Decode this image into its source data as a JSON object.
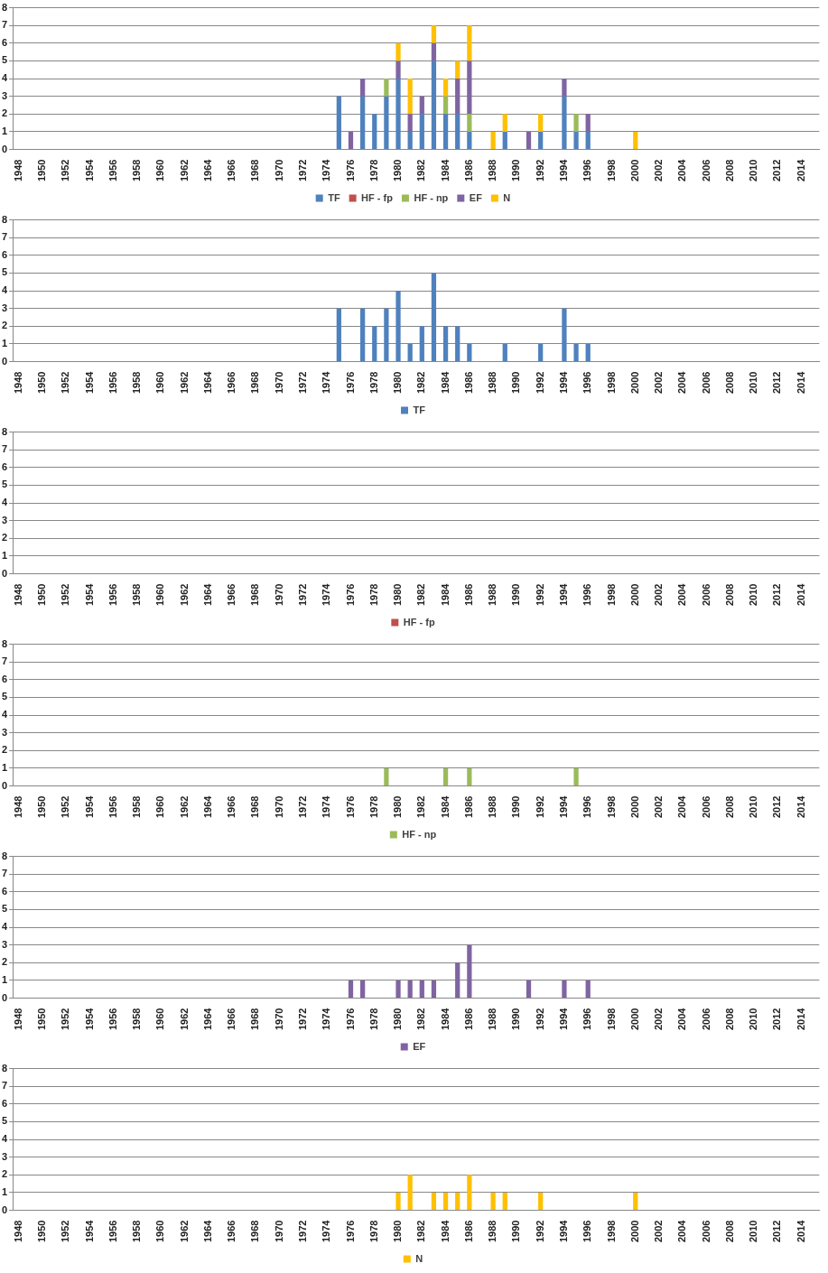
{
  "chart_data": [
    {
      "type": "bar",
      "stacked": true,
      "categories": [
        "1948",
        null,
        "1950",
        null,
        "1952",
        null,
        "1954",
        null,
        "1956",
        null,
        "1958",
        null,
        "1960",
        null,
        "1962",
        null,
        "1964",
        null,
        "1966",
        null,
        "1968",
        null,
        "1970",
        null,
        "1972",
        null,
        "1974",
        null,
        "1976",
        null,
        "1978",
        null,
        "1980",
        null,
        "1982",
        null,
        "1984",
        null,
        "1986",
        null,
        "1988",
        null,
        "1990",
        null,
        "1992",
        null,
        "1994",
        null,
        "1996",
        null,
        "1998",
        null,
        "2000",
        null,
        "2002",
        null,
        "2004",
        null,
        "2006",
        null,
        "2008",
        null,
        "2010",
        null,
        "2012",
        null,
        "2014",
        null
      ],
      "ylim": [
        0,
        8
      ],
      "yticks": [
        0,
        1,
        2,
        3,
        4,
        5,
        6,
        7,
        8
      ],
      "grid": "y",
      "legend": "bottom",
      "series": [
        {
          "name": "TF",
          "color": "#4f81bd",
          "values": [
            0,
            0,
            0,
            0,
            0,
            0,
            0,
            0,
            0,
            0,
            0,
            0,
            0,
            0,
            0,
            0,
            0,
            0,
            0,
            0,
            0,
            0,
            0,
            0,
            0,
            0,
            0,
            3,
            0,
            3,
            2,
            3,
            4,
            1,
            2,
            5,
            2,
            2,
            1,
            0,
            0,
            1,
            0,
            0,
            1,
            0,
            3,
            1,
            1,
            0,
            0,
            0,
            0,
            0,
            0,
            0,
            0,
            0,
            0,
            0,
            0,
            0,
            0,
            0,
            0,
            0,
            0,
            0
          ]
        },
        {
          "name": "HF - fp",
          "color": "#c0504d",
          "values": [
            0,
            0,
            0,
            0,
            0,
            0,
            0,
            0,
            0,
            0,
            0,
            0,
            0,
            0,
            0,
            0,
            0,
            0,
            0,
            0,
            0,
            0,
            0,
            0,
            0,
            0,
            0,
            0,
            0,
            0,
            0,
            0,
            0,
            0,
            0,
            0,
            0,
            0,
            0,
            0,
            0,
            0,
            0,
            0,
            0,
            0,
            0,
            0,
            0,
            0,
            0,
            0,
            0,
            0,
            0,
            0,
            0,
            0,
            0,
            0,
            0,
            0,
            0,
            0,
            0,
            0,
            0,
            0
          ]
        },
        {
          "name": "HF - np",
          "color": "#9bbb59",
          "values": [
            0,
            0,
            0,
            0,
            0,
            0,
            0,
            0,
            0,
            0,
            0,
            0,
            0,
            0,
            0,
            0,
            0,
            0,
            0,
            0,
            0,
            0,
            0,
            0,
            0,
            0,
            0,
            0,
            0,
            0,
            0,
            1,
            0,
            0,
            0,
            0,
            1,
            0,
            1,
            0,
            0,
            0,
            0,
            0,
            0,
            0,
            0,
            1,
            0,
            0,
            0,
            0,
            0,
            0,
            0,
            0,
            0,
            0,
            0,
            0,
            0,
            0,
            0,
            0,
            0,
            0,
            0,
            0
          ]
        },
        {
          "name": "EF",
          "color": "#8064a2",
          "values": [
            0,
            0,
            0,
            0,
            0,
            0,
            0,
            0,
            0,
            0,
            0,
            0,
            0,
            0,
            0,
            0,
            0,
            0,
            0,
            0,
            0,
            0,
            0,
            0,
            0,
            0,
            0,
            0,
            1,
            1,
            0,
            0,
            1,
            1,
            1,
            1,
            0,
            2,
            3,
            0,
            0,
            0,
            0,
            1,
            0,
            0,
            1,
            0,
            1,
            0,
            0,
            0,
            0,
            0,
            0,
            0,
            0,
            0,
            0,
            0,
            0,
            0,
            0,
            0,
            0,
            0,
            0,
            0
          ]
        },
        {
          "name": "N",
          "color": "#ffc000",
          "values": [
            0,
            0,
            0,
            0,
            0,
            0,
            0,
            0,
            0,
            0,
            0,
            0,
            0,
            0,
            0,
            0,
            0,
            0,
            0,
            0,
            0,
            0,
            0,
            0,
            0,
            0,
            0,
            0,
            0,
            0,
            0,
            0,
            1,
            2,
            0,
            1,
            1,
            1,
            2,
            0,
            1,
            1,
            0,
            0,
            1,
            0,
            0,
            0,
            0,
            0,
            0,
            0,
            1,
            0,
            0,
            0,
            0,
            0,
            0,
            0,
            0,
            0,
            0,
            0,
            0,
            0,
            0,
            0
          ]
        }
      ]
    },
    {
      "type": "bar",
      "categories": [
        "1948",
        null,
        "1950",
        null,
        "1952",
        null,
        "1954",
        null,
        "1956",
        null,
        "1958",
        null,
        "1960",
        null,
        "1962",
        null,
        "1964",
        null,
        "1966",
        null,
        "1968",
        null,
        "1970",
        null,
        "1972",
        null,
        "1974",
        null,
        "1976",
        null,
        "1978",
        null,
        "1980",
        null,
        "1982",
        null,
        "1984",
        null,
        "1986",
        null,
        "1988",
        null,
        "1990",
        null,
        "1992",
        null,
        "1994",
        null,
        "1996",
        null,
        "1998",
        null,
        "2000",
        null,
        "2002",
        null,
        "2004",
        null,
        "2006",
        null,
        "2008",
        null,
        "2010",
        null,
        "2012",
        null,
        "2014",
        null
      ],
      "ylim": [
        0,
        8
      ],
      "yticks": [
        0,
        1,
        2,
        3,
        4,
        5,
        6,
        7,
        8
      ],
      "grid": "y",
      "legend": "bottom",
      "series": [
        {
          "name": "TF",
          "color": "#4f81bd",
          "values": [
            0,
            0,
            0,
            0,
            0,
            0,
            0,
            0,
            0,
            0,
            0,
            0,
            0,
            0,
            0,
            0,
            0,
            0,
            0,
            0,
            0,
            0,
            0,
            0,
            0,
            0,
            0,
            3,
            0,
            3,
            2,
            3,
            4,
            1,
            2,
            5,
            2,
            2,
            1,
            0,
            0,
            1,
            0,
            0,
            1,
            0,
            3,
            1,
            1,
            0,
            0,
            0,
            0,
            0,
            0,
            0,
            0,
            0,
            0,
            0,
            0,
            0,
            0,
            0,
            0,
            0,
            0,
            0
          ]
        }
      ]
    },
    {
      "type": "bar",
      "categories": [
        "1948",
        null,
        "1950",
        null,
        "1952",
        null,
        "1954",
        null,
        "1956",
        null,
        "1958",
        null,
        "1960",
        null,
        "1962",
        null,
        "1964",
        null,
        "1966",
        null,
        "1968",
        null,
        "1970",
        null,
        "1972",
        null,
        "1974",
        null,
        "1976",
        null,
        "1978",
        null,
        "1980",
        null,
        "1982",
        null,
        "1984",
        null,
        "1986",
        null,
        "1988",
        null,
        "1990",
        null,
        "1992",
        null,
        "1994",
        null,
        "1996",
        null,
        "1998",
        null,
        "2000",
        null,
        "2002",
        null,
        "2004",
        null,
        "2006",
        null,
        "2008",
        null,
        "2010",
        null,
        "2012",
        null,
        "2014",
        null
      ],
      "ylim": [
        0,
        8
      ],
      "yticks": [
        0,
        1,
        2,
        3,
        4,
        5,
        6,
        7,
        8
      ],
      "grid": "y",
      "legend": "bottom",
      "series": [
        {
          "name": "HF - fp",
          "color": "#c0504d",
          "values": [
            0,
            0,
            0,
            0,
            0,
            0,
            0,
            0,
            0,
            0,
            0,
            0,
            0,
            0,
            0,
            0,
            0,
            0,
            0,
            0,
            0,
            0,
            0,
            0,
            0,
            0,
            0,
            0,
            0,
            0,
            0,
            0,
            0,
            0,
            0,
            0,
            0,
            0,
            0,
            0,
            0,
            0,
            0,
            0,
            0,
            0,
            0,
            0,
            0,
            0,
            0,
            0,
            0,
            0,
            0,
            0,
            0,
            0,
            0,
            0,
            0,
            0,
            0,
            0,
            0,
            0,
            0,
            0
          ]
        }
      ]
    },
    {
      "type": "bar",
      "categories": [
        "1948",
        null,
        "1950",
        null,
        "1952",
        null,
        "1954",
        null,
        "1956",
        null,
        "1958",
        null,
        "1960",
        null,
        "1962",
        null,
        "1964",
        null,
        "1966",
        null,
        "1968",
        null,
        "1970",
        null,
        "1972",
        null,
        "1974",
        null,
        "1976",
        null,
        "1978",
        null,
        "1980",
        null,
        "1982",
        null,
        "1984",
        null,
        "1986",
        null,
        "1988",
        null,
        "1990",
        null,
        "1992",
        null,
        "1994",
        null,
        "1996",
        null,
        "1998",
        null,
        "2000",
        null,
        "2002",
        null,
        "2004",
        null,
        "2006",
        null,
        "2008",
        null,
        "2010",
        null,
        "2012",
        null,
        "2014",
        null
      ],
      "ylim": [
        0,
        8
      ],
      "yticks": [
        0,
        1,
        2,
        3,
        4,
        5,
        6,
        7,
        8
      ],
      "grid": "y",
      "legend": "bottom",
      "series": [
        {
          "name": "HF - np",
          "color": "#9bbb59",
          "values": [
            0,
            0,
            0,
            0,
            0,
            0,
            0,
            0,
            0,
            0,
            0,
            0,
            0,
            0,
            0,
            0,
            0,
            0,
            0,
            0,
            0,
            0,
            0,
            0,
            0,
            0,
            0,
            0,
            0,
            0,
            0,
            1,
            0,
            0,
            0,
            0,
            1,
            0,
            1,
            0,
            0,
            0,
            0,
            0,
            0,
            0,
            0,
            1,
            0,
            0,
            0,
            0,
            0,
            0,
            0,
            0,
            0,
            0,
            0,
            0,
            0,
            0,
            0,
            0,
            0,
            0,
            0,
            0
          ]
        }
      ]
    },
    {
      "type": "bar",
      "categories": [
        "1948",
        null,
        "1950",
        null,
        "1952",
        null,
        "1954",
        null,
        "1956",
        null,
        "1958",
        null,
        "1960",
        null,
        "1962",
        null,
        "1964",
        null,
        "1966",
        null,
        "1968",
        null,
        "1970",
        null,
        "1972",
        null,
        "1974",
        null,
        "1976",
        null,
        "1978",
        null,
        "1980",
        null,
        "1982",
        null,
        "1984",
        null,
        "1986",
        null,
        "1988",
        null,
        "1990",
        null,
        "1992",
        null,
        "1994",
        null,
        "1996",
        null,
        "1998",
        null,
        "2000",
        null,
        "2002",
        null,
        "2004",
        null,
        "2006",
        null,
        "2008",
        null,
        "2010",
        null,
        "2012",
        null,
        "2014",
        null
      ],
      "ylim": [
        0,
        8
      ],
      "yticks": [
        0,
        1,
        2,
        3,
        4,
        5,
        6,
        7,
        8
      ],
      "grid": "y",
      "legend": "bottom",
      "series": [
        {
          "name": "EF",
          "color": "#8064a2",
          "values": [
            0,
            0,
            0,
            0,
            0,
            0,
            0,
            0,
            0,
            0,
            0,
            0,
            0,
            0,
            0,
            0,
            0,
            0,
            0,
            0,
            0,
            0,
            0,
            0,
            0,
            0,
            0,
            0,
            1,
            1,
            0,
            0,
            1,
            1,
            1,
            1,
            0,
            2,
            3,
            0,
            0,
            0,
            0,
            1,
            0,
            0,
            1,
            0,
            1,
            0,
            0,
            0,
            0,
            0,
            0,
            0,
            0,
            0,
            0,
            0,
            0,
            0,
            0,
            0,
            0,
            0,
            0,
            0
          ]
        }
      ]
    },
    {
      "type": "bar",
      "categories": [
        "1948",
        null,
        "1950",
        null,
        "1952",
        null,
        "1954",
        null,
        "1956",
        null,
        "1958",
        null,
        "1960",
        null,
        "1962",
        null,
        "1964",
        null,
        "1966",
        null,
        "1968",
        null,
        "1970",
        null,
        "1972",
        null,
        "1974",
        null,
        "1976",
        null,
        "1978",
        null,
        "1980",
        null,
        "1982",
        null,
        "1984",
        null,
        "1986",
        null,
        "1988",
        null,
        "1990",
        null,
        "1992",
        null,
        "1994",
        null,
        "1996",
        null,
        "1998",
        null,
        "2000",
        null,
        "2002",
        null,
        "2004",
        null,
        "2006",
        null,
        "2008",
        null,
        "2010",
        null,
        "2012",
        null,
        "2014",
        null
      ],
      "ylim": [
        0,
        8
      ],
      "yticks": [
        0,
        1,
        2,
        3,
        4,
        5,
        6,
        7,
        8
      ],
      "grid": "y",
      "legend": "bottom",
      "series": [
        {
          "name": "N",
          "color": "#ffc000",
          "values": [
            0,
            0,
            0,
            0,
            0,
            0,
            0,
            0,
            0,
            0,
            0,
            0,
            0,
            0,
            0,
            0,
            0,
            0,
            0,
            0,
            0,
            0,
            0,
            0,
            0,
            0,
            0,
            0,
            0,
            0,
            0,
            0,
            1,
            2,
            0,
            1,
            1,
            1,
            2,
            0,
            1,
            1,
            0,
            0,
            1,
            0,
            0,
            0,
            0,
            0,
            0,
            0,
            1,
            0,
            0,
            0,
            0,
            0,
            0,
            0,
            0,
            0,
            0,
            0,
            0,
            0,
            0,
            0
          ]
        }
      ]
    }
  ]
}
